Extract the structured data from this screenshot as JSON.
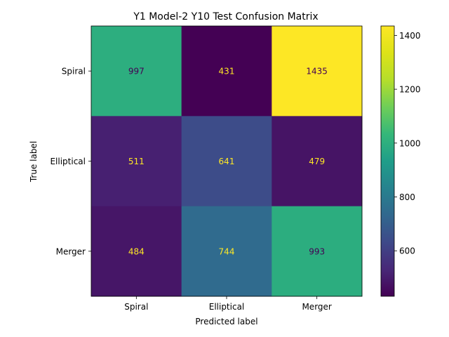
{
  "chart_data": {
    "type": "heatmap",
    "title": "Y1 Model-2 Y10 Test Confusion Matrix",
    "xlabel": "Predicted label",
    "ylabel": "True label",
    "x_categories": [
      "Spiral",
      "Elliptical",
      "Merger"
    ],
    "y_categories": [
      "Spiral",
      "Elliptical",
      "Merger"
    ],
    "values": [
      [
        997,
        431,
        1435
      ],
      [
        511,
        641,
        479
      ],
      [
        484,
        744,
        993
      ]
    ],
    "colorbar": {
      "colormap": "viridis",
      "range": [
        431,
        1435
      ],
      "ticks": [
        600,
        800,
        1000,
        1200,
        1400
      ]
    },
    "text_colors": {
      "on_dark": "#fde725",
      "on_light": "#440154"
    }
  }
}
